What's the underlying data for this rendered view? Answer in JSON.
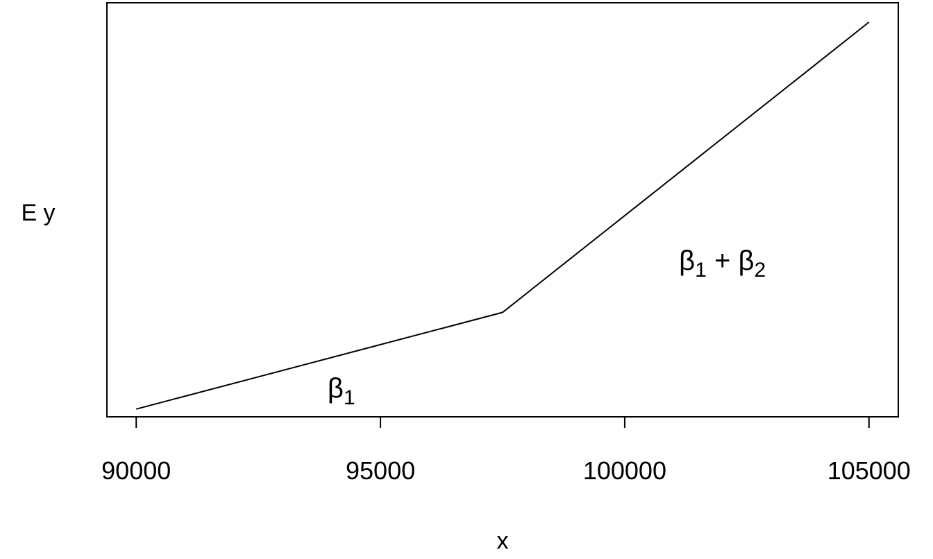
{
  "chart_data": {
    "type": "line",
    "xlabel": "x",
    "ylabel": "E y",
    "xlim": [
      89400,
      105600
    ],
    "ylim": [
      -0.02,
      1.05
    ],
    "x_ticks": [
      {
        "value": 90000,
        "label": "90000"
      },
      {
        "value": 95000,
        "label": "95000"
      },
      {
        "value": 100000,
        "label": "100000"
      },
      {
        "value": 105000,
        "label": "105000"
      }
    ],
    "y_ticks_shown": false,
    "series": [
      {
        "x": [
          90000,
          97500,
          105000
        ],
        "y": [
          0,
          0.25,
          1
        ]
      }
    ],
    "annotations": [
      {
        "base": "β",
        "sub": "1",
        "x": 94200,
        "y": 0.03
      },
      {
        "base": "β",
        "sub": "1",
        "op": "+",
        "base2": "β",
        "sub2": "2",
        "x": 102000,
        "y": 0.36
      }
    ],
    "grid": false,
    "box": true,
    "line_color": "#000000"
  }
}
